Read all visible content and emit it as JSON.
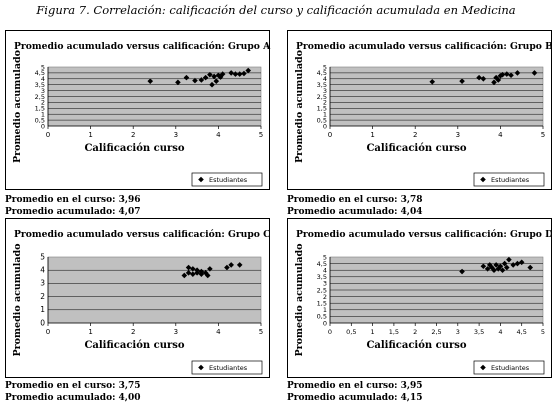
{
  "figure_title": "Figura 7. Correlación: calificación del curso y calificación acumulada en Medicina",
  "chart_data": [
    {
      "type": "scatter",
      "title": "Promedio acumulado versus calificación: Grupo A",
      "xlabel": "Calificación curso",
      "ylabel": "Promedio acumulado",
      "xlim": [
        0,
        5
      ],
      "ylim": [
        0,
        5
      ],
      "x_ticks": [
        "0",
        "1",
        "2",
        "3",
        "4",
        "5"
      ],
      "y_ticks": [
        "0",
        "0,5",
        "1",
        "1,5",
        "2",
        "2,5",
        "3",
        "3,5",
        "4",
        "4,5",
        "5"
      ],
      "y_tick_values": [
        0,
        0.5,
        1,
        1.5,
        2,
        2.5,
        3,
        3.5,
        4,
        4.5,
        5
      ],
      "grid_y": true,
      "legend": "Estudiantes",
      "series": [
        {
          "name": "Estudiantes",
          "x": [
            2.4,
            3.05,
            3.25,
            3.45,
            3.6,
            3.7,
            3.8,
            3.85,
            3.9,
            3.95,
            4.0,
            4.05,
            4.1,
            4.3,
            4.4,
            4.5,
            4.6,
            4.7
          ],
          "y": [
            3.8,
            3.7,
            4.1,
            3.85,
            3.9,
            4.1,
            4.35,
            3.5,
            4.2,
            3.8,
            4.3,
            4.15,
            4.4,
            4.5,
            4.4,
            4.4,
            4.45,
            4.7
          ]
        }
      ],
      "summary": {
        "course_label": "Promedio en el curso:",
        "course_value": "3,96",
        "acc_label": "Promedio acumulado:",
        "acc_value": "4,07"
      }
    },
    {
      "type": "scatter",
      "title": "Promedio acumulado versus calificación: Grupo B",
      "xlabel": "Calificación curso",
      "ylabel": "Promedio acumulado",
      "xlim": [
        0,
        5
      ],
      "ylim": [
        0,
        5
      ],
      "x_ticks": [
        "0",
        "1",
        "2",
        "3",
        "4",
        "5"
      ],
      "y_ticks": [
        "0",
        "0,5",
        "1",
        "1,5",
        "2",
        "2,5",
        "3",
        "3,5",
        "4",
        "4,5",
        "5"
      ],
      "y_tick_values": [
        0,
        0.5,
        1,
        1.5,
        2,
        2.5,
        3,
        3.5,
        4,
        4.5,
        5
      ],
      "grid_y": true,
      "legend": "Estudiantes",
      "series": [
        {
          "name": "Estudiantes",
          "x": [
            2.4,
            3.1,
            3.5,
            3.6,
            3.85,
            3.9,
            3.95,
            4.0,
            4.05,
            4.15,
            4.25,
            4.4,
            4.8
          ],
          "y": [
            3.75,
            3.8,
            4.1,
            4.0,
            3.7,
            4.1,
            3.9,
            4.25,
            4.35,
            4.4,
            4.3,
            4.5,
            4.5
          ]
        }
      ],
      "summary": {
        "course_label": "Promedio en el curso:",
        "course_value": "3,78",
        "acc_label": "Promedio acumulado:",
        "acc_value": "4,04"
      }
    },
    {
      "type": "scatter",
      "title": "Promedio acumulado versus calificación: Grupo C",
      "xlabel": "Calificación curso",
      "ylabel": "Promedio acumulado",
      "xlim": [
        0,
        5
      ],
      "ylim": [
        0,
        5
      ],
      "x_ticks": [
        "0",
        "1",
        "2",
        "3",
        "4",
        "5"
      ],
      "y_ticks": [
        "0",
        "1",
        "2",
        "3",
        "4",
        "5"
      ],
      "y_tick_values": [
        0,
        1,
        2,
        3,
        4,
        5
      ],
      "grid_y": true,
      "legend": "Estudiantes",
      "series": [
        {
          "name": "Estudiantes",
          "x": [
            3.2,
            3.3,
            3.3,
            3.4,
            3.4,
            3.5,
            3.5,
            3.6,
            3.6,
            3.7,
            3.75,
            3.8,
            4.2,
            4.3,
            4.5
          ],
          "y": [
            3.6,
            3.8,
            4.2,
            3.7,
            4.1,
            3.8,
            4.0,
            3.7,
            3.9,
            3.8,
            3.6,
            4.1,
            4.2,
            4.4,
            4.4
          ]
        }
      ],
      "summary": {
        "course_label": "Promedio en el curso:",
        "course_value": "3,75",
        "acc_label": "Promedio acumulado:",
        "acc_value": "4,00"
      }
    },
    {
      "type": "scatter",
      "title": "Promedio acumulado versus calificación: Grupo D",
      "xlabel": "Calificación curso",
      "ylabel": "Promedio acumulado",
      "xlim": [
        0,
        5
      ],
      "ylim": [
        0,
        5
      ],
      "x_ticks": [
        "0",
        "0,5",
        "1",
        "1,5",
        "2",
        "2,5",
        "3",
        "3,5",
        "4",
        "4,5",
        "5"
      ],
      "y_ticks": [
        "0",
        "0,5",
        "1",
        "1,5",
        "2",
        "2,5",
        "3",
        "3,5",
        "4",
        "4,5",
        "5"
      ],
      "y_tick_values": [
        0,
        0.5,
        1,
        1.5,
        2,
        2.5,
        3,
        3.5,
        4,
        4.5,
        5
      ],
      "grid_y": true,
      "legend": "Estudiantes",
      "series": [
        {
          "name": "Estudiantes",
          "x": [
            3.1,
            3.6,
            3.7,
            3.75,
            3.8,
            3.85,
            3.9,
            3.95,
            4.0,
            4.05,
            4.1,
            4.15,
            4.2,
            4.3,
            4.4,
            4.5,
            4.7
          ],
          "y": [
            3.9,
            4.3,
            4.1,
            4.4,
            4.2,
            4.0,
            4.4,
            4.1,
            4.3,
            4.0,
            4.5,
            4.2,
            4.8,
            4.4,
            4.5,
            4.6,
            4.2
          ]
        }
      ],
      "summary": {
        "course_label": "Promedio en el curso:",
        "course_value": "3,95",
        "acc_label": "Promedio acumulado:",
        "acc_value": "4,15"
      }
    }
  ]
}
